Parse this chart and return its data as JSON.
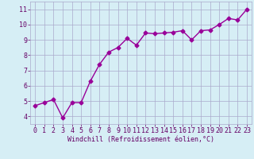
{
  "x": [
    0,
    1,
    2,
    3,
    4,
    5,
    6,
    7,
    8,
    9,
    10,
    11,
    12,
    13,
    14,
    15,
    16,
    17,
    18,
    19,
    20,
    21,
    22,
    23
  ],
  "y": [
    4.7,
    4.9,
    5.1,
    3.9,
    4.9,
    4.9,
    6.3,
    7.4,
    8.2,
    8.5,
    9.1,
    8.65,
    9.45,
    9.4,
    9.45,
    9.5,
    9.6,
    9.0,
    9.6,
    9.65,
    10.0,
    10.4,
    10.3,
    11.0
  ],
  "line_color": "#990099",
  "marker": "D",
  "marker_size": 2.5,
  "bg_color": "#d6eef5",
  "grid_color": "#aaaacc",
  "xlabel": "Windchill (Refroidissement éolien,°C)",
  "xlim": [
    -0.5,
    23.5
  ],
  "ylim": [
    3.5,
    11.5
  ],
  "yticks": [
    4,
    5,
    6,
    7,
    8,
    9,
    10,
    11
  ],
  "xticks": [
    0,
    1,
    2,
    3,
    4,
    5,
    6,
    7,
    8,
    9,
    10,
    11,
    12,
    13,
    14,
    15,
    16,
    17,
    18,
    19,
    20,
    21,
    22,
    23
  ],
  "tick_color": "#660066",
  "xlabel_color": "#660066",
  "xlabel_fontsize": 6,
  "tick_fontsize": 6,
  "line_width": 1.0
}
